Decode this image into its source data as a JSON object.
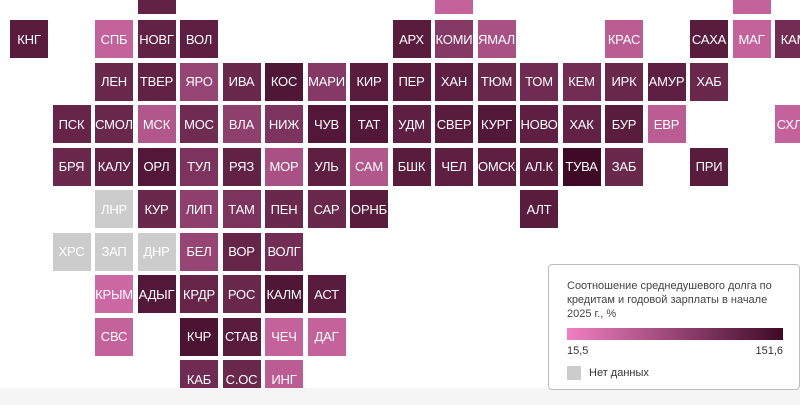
{
  "map": {
    "colors": {
      "low": "#f080c2",
      "high": "#3e0a26",
      "nodata": "#cccccc"
    },
    "value_range": [
      15.5,
      151.6
    ],
    "rows": [
      {
        "r": -1,
        "tiles": [
          [
            "",
            3,
            0.8
          ],
          [
            "",
            10,
            0.25
          ],
          [
            "",
            17,
            0.25
          ]
        ]
      },
      {
        "r": 0,
        "tiles": [
          [
            "КНГ",
            0,
            0.85
          ],
          [
            "СПБ",
            2,
            0.25
          ],
          [
            "НОВГ",
            3,
            0.8
          ],
          [
            "ВОЛ",
            4,
            0.82
          ],
          [
            "АРХ",
            9,
            0.85
          ],
          [
            "КОМИ",
            10,
            0.6
          ],
          [
            "ЯМАЛ",
            11,
            0.4
          ],
          [
            "КРАС",
            14,
            0.3
          ],
          [
            "САХА",
            16,
            0.85
          ],
          [
            "МАГ",
            17,
            0.25
          ],
          [
            "КАМ",
            18,
            0.7
          ]
        ]
      },
      {
        "r": 1,
        "tiles": [
          [
            "ЛЕН",
            2,
            0.75
          ],
          [
            "ТВЕР",
            3,
            0.8
          ],
          [
            "ЯРО",
            4,
            0.5
          ],
          [
            "ИВА",
            5,
            0.75
          ],
          [
            "КОС",
            6,
            0.9
          ],
          [
            "МАРИ",
            7,
            0.6
          ],
          [
            "КИР",
            8,
            0.85
          ],
          [
            "ПЕР",
            9,
            0.85
          ],
          [
            "ХАН",
            10,
            0.82
          ],
          [
            "ТЮМ",
            11,
            0.75
          ],
          [
            "ТОМ",
            12,
            0.72
          ],
          [
            "КЕМ",
            13,
            0.7
          ],
          [
            "ИРК",
            14,
            0.75
          ],
          [
            "АМУР",
            15,
            0.82
          ],
          [
            "ХАБ",
            16,
            0.75
          ]
        ]
      },
      {
        "r": 2,
        "tiles": [
          [
            "ПСК",
            1,
            0.78
          ],
          [
            "СМОЛ",
            2,
            0.75
          ],
          [
            "МСК",
            3,
            0.35
          ],
          [
            "МОС",
            4,
            0.72
          ],
          [
            "ВЛА",
            5,
            0.55
          ],
          [
            "НИЖ",
            6,
            0.65
          ],
          [
            "ЧУВ",
            7,
            0.88
          ],
          [
            "ТАТ",
            8,
            0.88
          ],
          [
            "УДМ",
            9,
            0.82
          ],
          [
            "СВЕР",
            10,
            0.85
          ],
          [
            "КУРГ",
            11,
            0.88
          ],
          [
            "НОВО",
            12,
            0.82
          ],
          [
            "ХАК",
            13,
            0.8
          ],
          [
            "БУР",
            14,
            0.85
          ],
          [
            "ЕВР",
            15,
            0.3
          ],
          [
            "СХЛН",
            18,
            0.25
          ]
        ]
      },
      {
        "r": 3,
        "tiles": [
          [
            "БРЯ",
            1,
            0.75
          ],
          [
            "КАЛУ",
            2,
            0.8
          ],
          [
            "ОРЛ",
            3,
            0.88
          ],
          [
            "ТУЛ",
            4,
            0.65
          ],
          [
            "РЯЗ",
            5,
            0.8
          ],
          [
            "МОР",
            6,
            0.4
          ],
          [
            "УЛЬ",
            7,
            0.82
          ],
          [
            "САМ",
            8,
            0.35
          ],
          [
            "БШК",
            9,
            0.85
          ],
          [
            "ЧЕЛ",
            10,
            0.82
          ],
          [
            "ОМСК",
            11,
            0.82
          ],
          [
            "АЛ.К",
            12,
            0.85
          ],
          [
            "ТУВА",
            13,
            1.0
          ],
          [
            "ЗАБ",
            14,
            0.75
          ],
          [
            "ПРИ",
            16,
            0.85
          ]
        ]
      },
      {
        "r": 4,
        "tiles": [
          [
            "ЛНР",
            2,
            -1
          ],
          [
            "КУР",
            3,
            0.75
          ],
          [
            "ЛИП",
            4,
            0.55
          ],
          [
            "ТАМ",
            5,
            0.65
          ],
          [
            "ПЕН",
            6,
            0.75
          ],
          [
            "САР",
            7,
            0.75
          ],
          [
            "ОРНБ",
            8,
            0.85
          ],
          [
            "АЛТ",
            12,
            0.85
          ]
        ]
      },
      {
        "r": 5,
        "tiles": [
          [
            "ХРС",
            1,
            -1
          ],
          [
            "ЗАП",
            2,
            -1
          ],
          [
            "ДНР",
            3,
            -1
          ],
          [
            "БЕЛ",
            4,
            0.5
          ],
          [
            "ВОР",
            5,
            0.78
          ],
          [
            "ВОЛГ",
            6,
            0.7
          ]
        ]
      },
      {
        "r": 6,
        "tiles": [
          [
            "КРЫМ",
            2,
            0.2
          ],
          [
            "АДЫГ",
            3,
            0.88
          ],
          [
            "КРДР",
            4,
            0.78
          ],
          [
            "РОС",
            5,
            0.75
          ],
          [
            "КАЛМ",
            6,
            0.9
          ],
          [
            "АСТ",
            7,
            0.85
          ]
        ]
      },
      {
        "r": 7,
        "tiles": [
          [
            "СВС",
            2,
            0.25
          ],
          [
            "КЧР",
            4,
            0.92
          ],
          [
            "СТАВ",
            5,
            0.85
          ],
          [
            "ЧЕЧ",
            6,
            0.25
          ],
          [
            "ДАГ",
            7,
            0.25
          ]
        ]
      },
      {
        "r": 8,
        "tiles": [
          [
            "КАБ",
            4,
            0.72
          ],
          [
            "С.ОС",
            5,
            0.75
          ],
          [
            "ИНГ",
            6,
            0.3
          ]
        ]
      }
    ]
  },
  "legend": {
    "title": "Соотношение среднедушевого долга по кредитам и годовой зарплаты в начале 2025 г., %",
    "min_label": "15,5",
    "max_label": "151,6",
    "nodata_label": "Нет данных"
  }
}
